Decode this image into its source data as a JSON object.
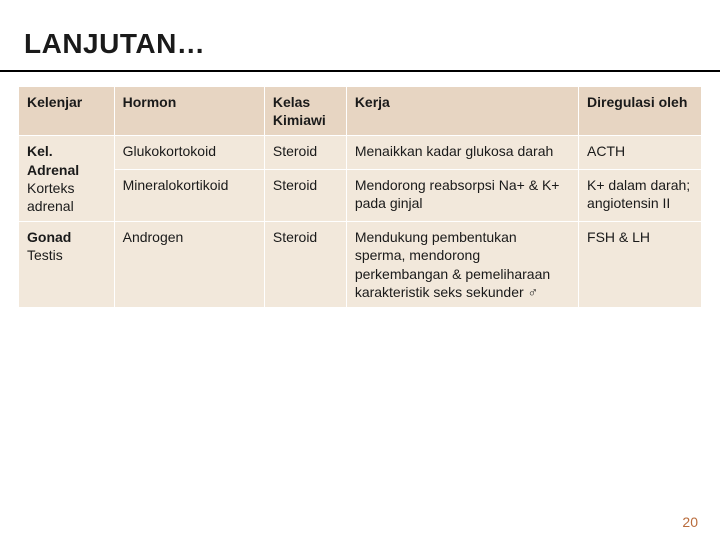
{
  "title": "LANJUTAN…",
  "page_number": "20",
  "table": {
    "columns": [
      "Kelenjar",
      "Hormon",
      "Kelas Kimiawi",
      "Kerja",
      "Diregulasi oleh"
    ],
    "rows": [
      {
        "kelenjar_html": "<span class='bold'>Kel. Adrenal</span> Korteks adrenal",
        "hormon": "Glukokortokoid",
        "kelas": "Steroid",
        "kerja": "Menaikkan kadar glukosa darah",
        "diregulasi": "ACTH",
        "rowspan_kelenjar": 2
      },
      {
        "hormon": "Mineralokortikoid",
        "kelas": "Steroid",
        "kerja": "Mendorong reabsorpsi Na+ & K+ pada ginjal",
        "diregulasi": "K+ dalam darah; angiotensin II"
      },
      {
        "kelenjar_html": "<span class='bold'>Gonad</span> Testis",
        "hormon": "Androgen",
        "kelas": "Steroid",
        "kerja": "Mendukung pembentukan sperma, mendorong perkembangan & pemeliharaan karakteristik seks sekunder ♂",
        "diregulasi": "FSH & LH",
        "rowspan_kelenjar": 1
      }
    ]
  },
  "colors": {
    "header_bg": "#e7d5c2",
    "cell_bg": "#f2e8db",
    "rule": "#000000",
    "page_num": "#b96c3c"
  }
}
